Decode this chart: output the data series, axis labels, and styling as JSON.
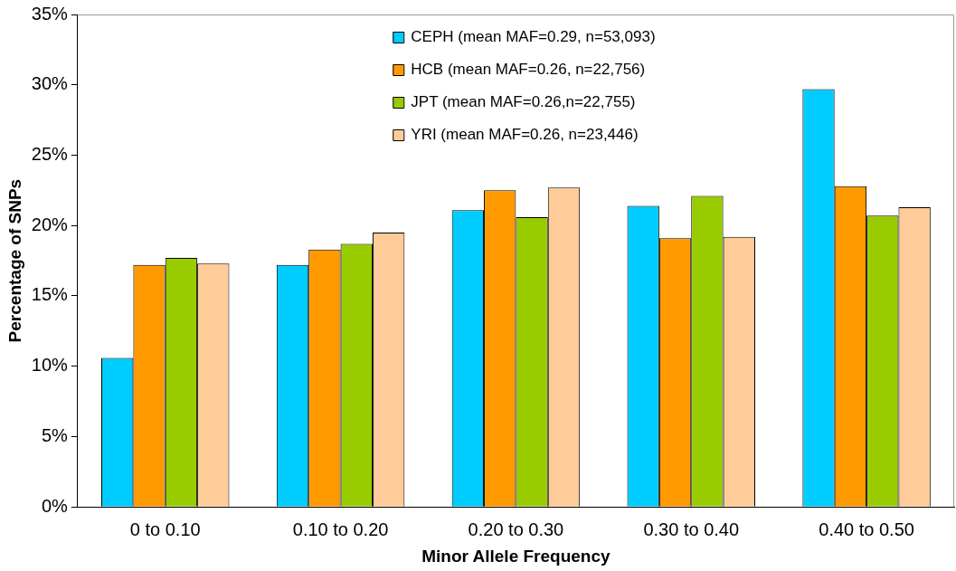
{
  "chart_data": {
    "type": "bar",
    "xlabel": "Minor Allele Frequency",
    "ylabel": "Percentage of SNPs",
    "categories": [
      "0 to 0.10",
      "0.10 to 0.20",
      "0.20 to 0.30",
      "0.30 to 0.40",
      "0.40 to 0.50"
    ],
    "series": [
      {
        "name": "CEPH (mean MAF=0.29, n=53,093)",
        "color": "#00ccff",
        "values": [
          10.6,
          17.2,
          21.1,
          21.4,
          29.7
        ]
      },
      {
        "name": "HCB (mean MAF=0.26, n=22,756)",
        "color": "#ff9900",
        "values": [
          17.2,
          18.3,
          22.5,
          19.1,
          22.8
        ]
      },
      {
        "name": "JPT (mean MAF=0.26,n=22,755)",
        "color": "#99cc00",
        "values": [
          17.7,
          18.7,
          20.6,
          22.1,
          20.7
        ]
      },
      {
        "name": "YRI (mean MAF=0.26, n=23,446)",
        "color": "#ffcc99",
        "values": [
          17.3,
          19.5,
          22.7,
          19.2,
          21.3
        ]
      }
    ],
    "ylim": [
      0,
      35
    ],
    "yticks": [
      {
        "value": 0,
        "label": "0%"
      },
      {
        "value": 5,
        "label": "5%"
      },
      {
        "value": 10,
        "label": "10%"
      },
      {
        "value": 15,
        "label": "15%"
      },
      {
        "value": 20,
        "label": "20%"
      },
      {
        "value": 25,
        "label": "25%"
      },
      {
        "value": 30,
        "label": "30%"
      },
      {
        "value": 35,
        "label": "35%"
      }
    ],
    "grid": false,
    "legend": "top"
  }
}
